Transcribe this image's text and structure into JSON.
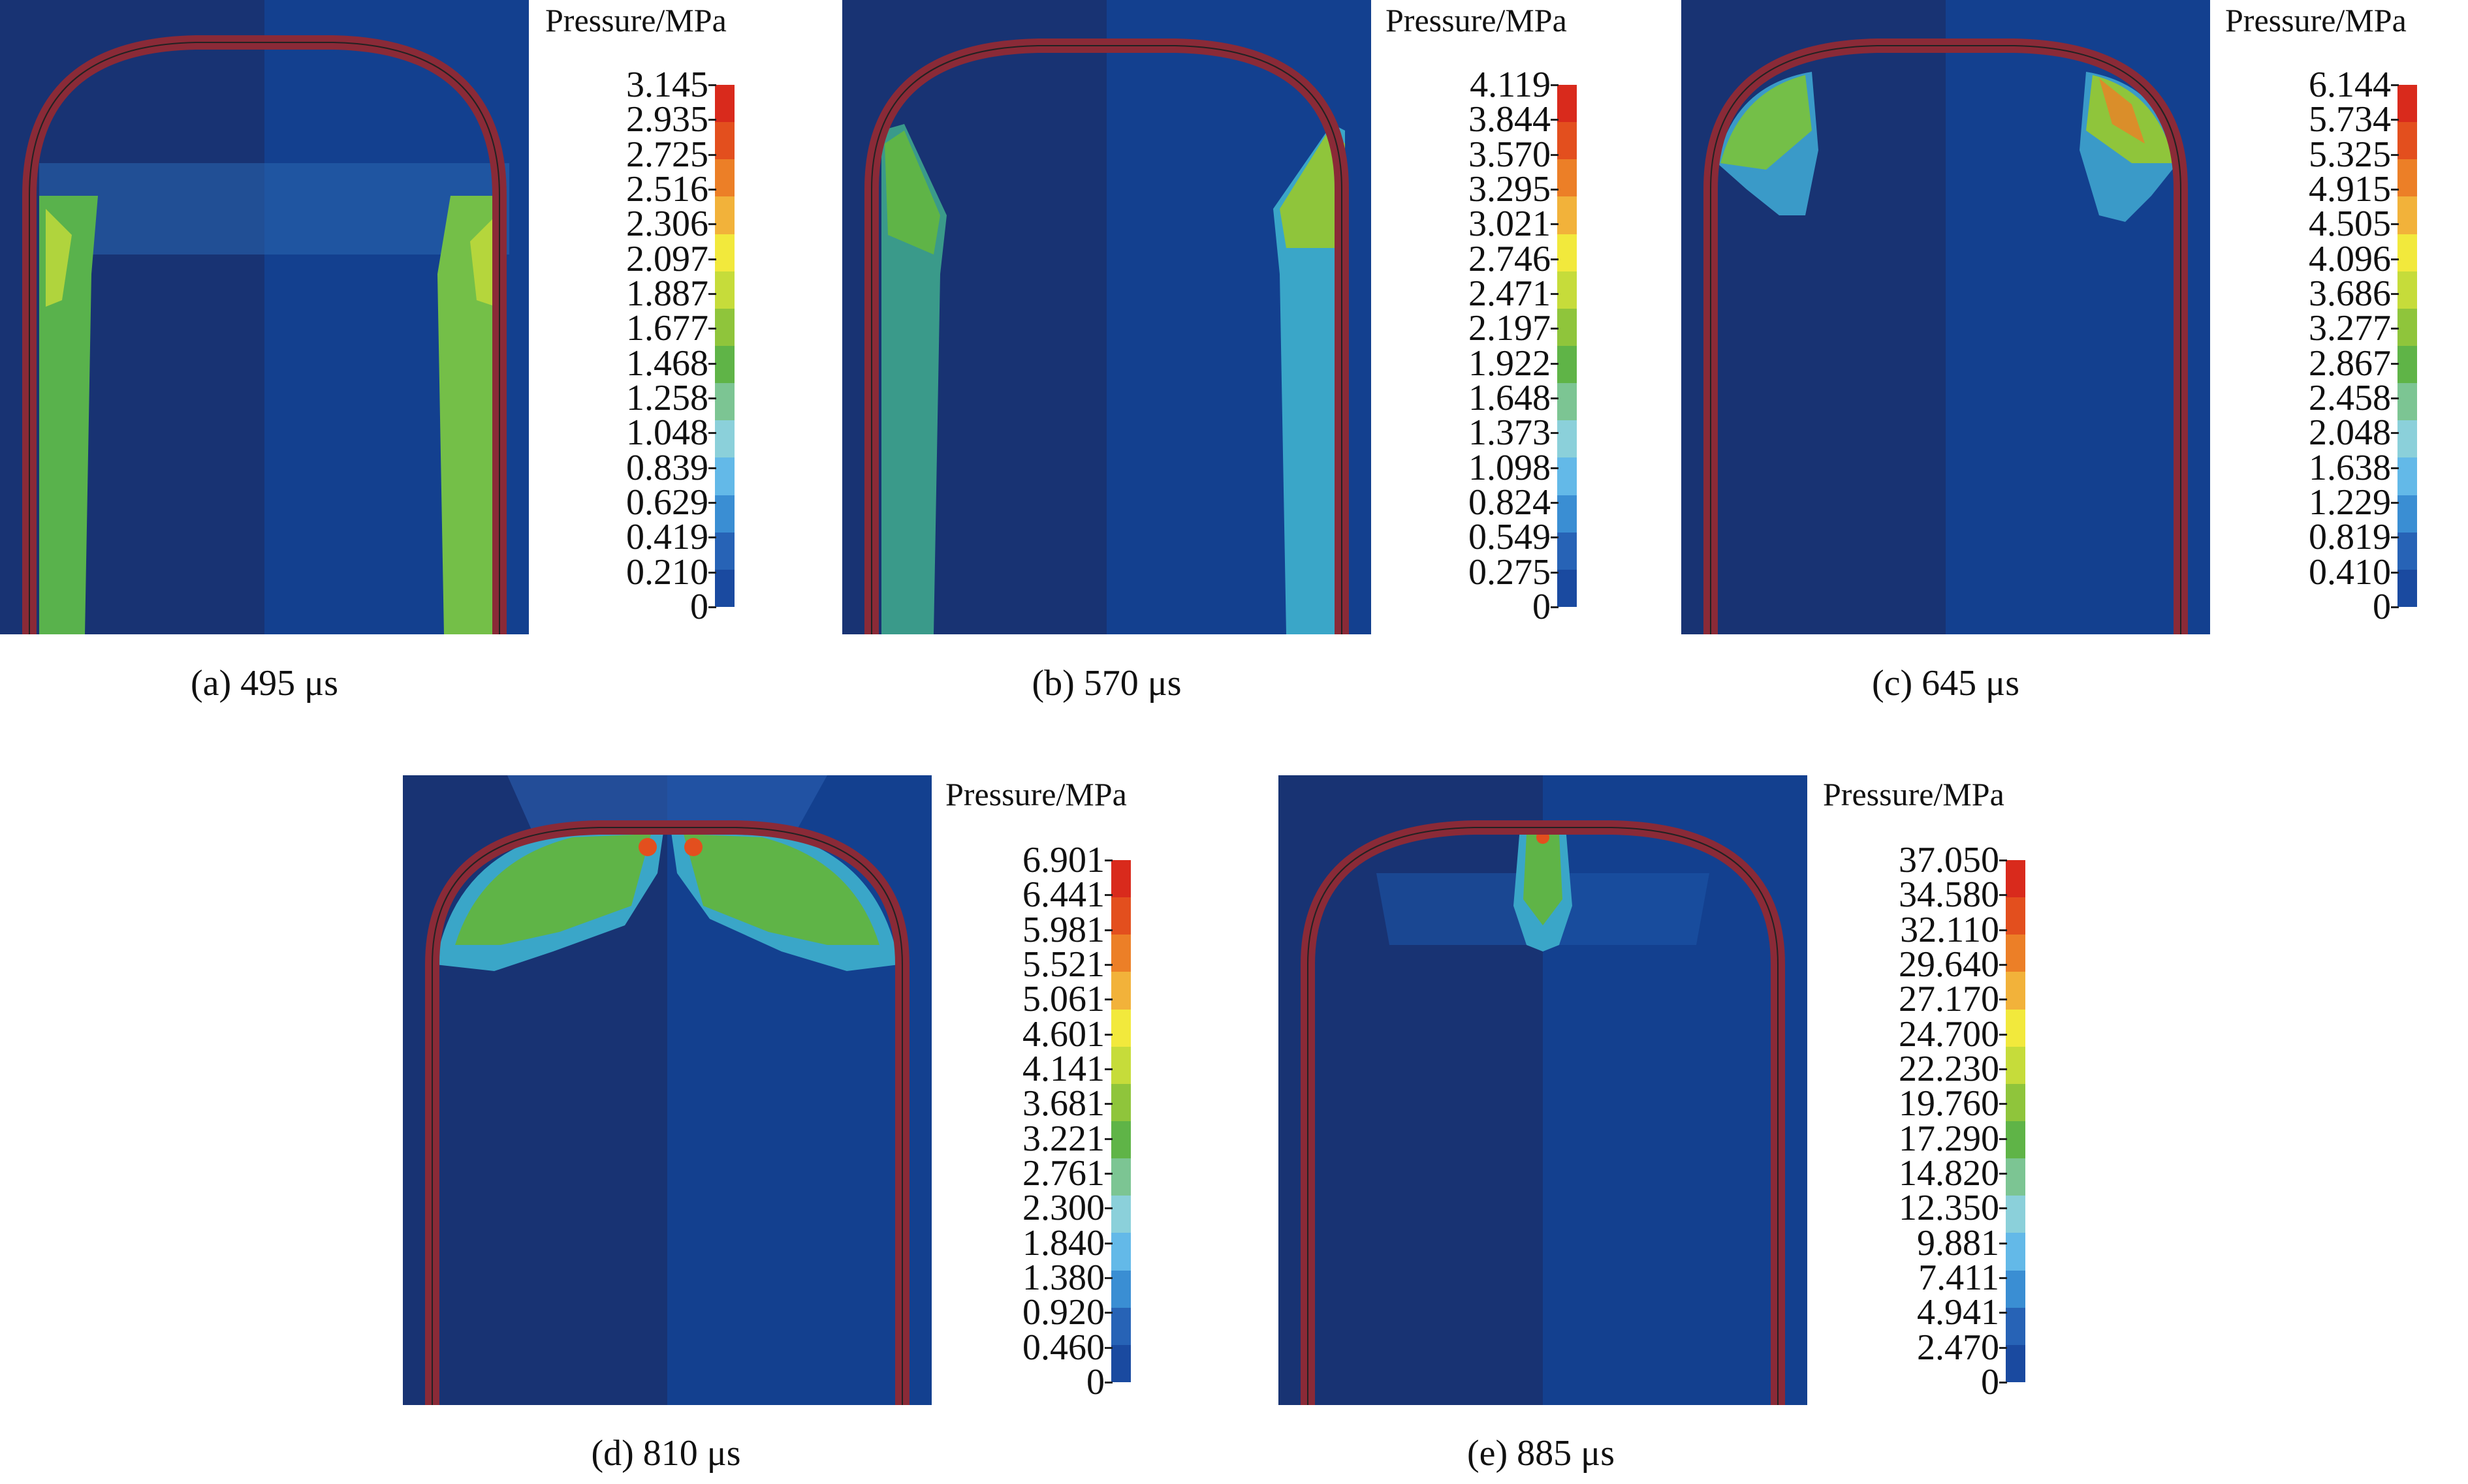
{
  "legend_title": "Pressure/MPa",
  "colors": {
    "background": "#13408f",
    "dark_half": "#1b2f6a",
    "shell": "#8a2a37",
    "colorbar": [
      "#1a4aa0",
      "#2763b6",
      "#3a8ed3",
      "#63b9e8",
      "#8bd0da",
      "#7cc593",
      "#5fb447",
      "#8fc53b",
      "#c6dc3a",
      "#f2e93c",
      "#f2b23a",
      "#ec7f27",
      "#e34f1e",
      "#d92a1c"
    ]
  },
  "panels": [
    {
      "caption": "(a) 495 μs",
      "ticks": [
        "3.145",
        "2.935",
        "2.725",
        "2.516",
        "2.306",
        "2.097",
        "1.887",
        "1.677",
        "1.468",
        "1.258",
        "1.048",
        "0.839",
        "0.629",
        "0.419",
        "0.210",
        "0"
      ]
    },
    {
      "caption": "(b) 570 μs",
      "ticks": [
        "4.119",
        "3.844",
        "3.570",
        "3.295",
        "3.021",
        "2.746",
        "2.471",
        "2.197",
        "1.922",
        "1.648",
        "1.373",
        "1.098",
        "0.824",
        "0.549",
        "0.275",
        "0"
      ]
    },
    {
      "caption": "(c) 645 μs",
      "ticks": [
        "6.144",
        "5.734",
        "5.325",
        "4.915",
        "4.505",
        "4.096",
        "3.686",
        "3.277",
        "2.867",
        "2.458",
        "2.048",
        "1.638",
        "1.229",
        "0.819",
        "0.410",
        "0"
      ]
    },
    {
      "caption": "(d) 810 μs",
      "ticks": [
        "6.901",
        "6.441",
        "5.981",
        "5.521",
        "5.061",
        "4.601",
        "4.141",
        "3.681",
        "3.221",
        "2.761",
        "2.300",
        "1.840",
        "1.380",
        "0.920",
        "0.460",
        "0"
      ]
    },
    {
      "caption": "(e) 885 μs",
      "ticks": [
        "37.050",
        "34.580",
        "32.110",
        "29.640",
        "27.170",
        "24.700",
        "22.230",
        "19.760",
        "17.290",
        "14.820",
        "12.350",
        "9.881",
        "7.411",
        "4.941",
        "2.470",
        "0"
      ]
    }
  ]
}
